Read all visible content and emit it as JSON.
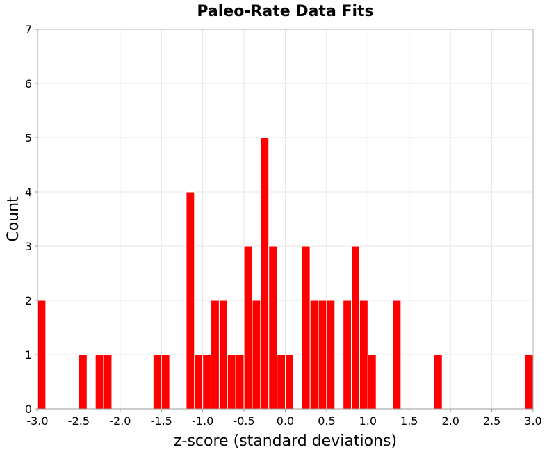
{
  "chart_data": {
    "type": "bar",
    "title": "Paleo-Rate Data Fits",
    "xlabel": "z-score (standard deviations)",
    "ylabel": "Count",
    "xlim": [
      -3.0,
      3.0
    ],
    "ylim": [
      0,
      7
    ],
    "bin_width": 0.1,
    "x_ticks": [
      "-3.0",
      "-2.5",
      "-2.0",
      "-1.5",
      "-1.0",
      "-0.5",
      "0.0",
      "0.5",
      "1.0",
      "1.5",
      "2.0",
      "2.5",
      "3.0"
    ],
    "y_ticks": [
      "0",
      "1",
      "2",
      "3",
      "4",
      "5",
      "6",
      "7"
    ],
    "grid": true,
    "bar_color": "#ff0000",
    "bins": [
      {
        "x0": -3.0,
        "x1": -2.9,
        "count": 2
      },
      {
        "x0": -2.5,
        "x1": -2.4,
        "count": 1
      },
      {
        "x0": -2.3,
        "x1": -2.2,
        "count": 1
      },
      {
        "x0": -2.2,
        "x1": -2.1,
        "count": 1
      },
      {
        "x0": -1.6,
        "x1": -1.5,
        "count": 1
      },
      {
        "x0": -1.5,
        "x1": -1.4,
        "count": 1
      },
      {
        "x0": -1.2,
        "x1": -1.1,
        "count": 4
      },
      {
        "x0": -1.1,
        "x1": -1.0,
        "count": 1
      },
      {
        "x0": -1.0,
        "x1": -0.9,
        "count": 1
      },
      {
        "x0": -0.9,
        "x1": -0.8,
        "count": 2
      },
      {
        "x0": -0.8,
        "x1": -0.7,
        "count": 2
      },
      {
        "x0": -0.7,
        "x1": -0.6,
        "count": 1
      },
      {
        "x0": -0.6,
        "x1": -0.5,
        "count": 1
      },
      {
        "x0": -0.5,
        "x1": -0.4,
        "count": 3
      },
      {
        "x0": -0.4,
        "x1": -0.3,
        "count": 2
      },
      {
        "x0": -0.3,
        "x1": -0.2,
        "count": 5
      },
      {
        "x0": -0.2,
        "x1": -0.1,
        "count": 3
      },
      {
        "x0": -0.1,
        "x1": 0.0,
        "count": 1
      },
      {
        "x0": 0.0,
        "x1": 0.1,
        "count": 1
      },
      {
        "x0": 0.2,
        "x1": 0.3,
        "count": 3
      },
      {
        "x0": 0.3,
        "x1": 0.4,
        "count": 2
      },
      {
        "x0": 0.4,
        "x1": 0.5,
        "count": 2
      },
      {
        "x0": 0.5,
        "x1": 0.6,
        "count": 2
      },
      {
        "x0": 0.7,
        "x1": 0.8,
        "count": 2
      },
      {
        "x0": 0.8,
        "x1": 0.9,
        "count": 3
      },
      {
        "x0": 0.9,
        "x1": 1.0,
        "count": 2
      },
      {
        "x0": 1.0,
        "x1": 1.1,
        "count": 1
      },
      {
        "x0": 1.3,
        "x1": 1.4,
        "count": 2
      },
      {
        "x0": 1.8,
        "x1": 1.9,
        "count": 1
      },
      {
        "x0": 2.9,
        "x1": 3.0,
        "count": 1
      }
    ]
  }
}
